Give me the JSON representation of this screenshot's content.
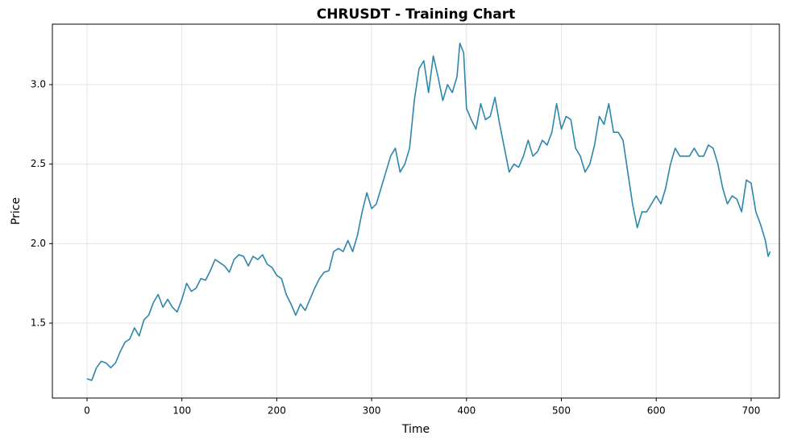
{
  "chart_data": {
    "type": "line",
    "title": "CHRUSDT - Training Chart",
    "x_label": "Time",
    "y_label": "Price",
    "x": [
      0,
      5,
      10,
      15,
      20,
      25,
      30,
      35,
      40,
      45,
      50,
      55,
      60,
      65,
      70,
      75,
      80,
      85,
      90,
      95,
      100,
      105,
      110,
      115,
      120,
      125,
      130,
      135,
      140,
      145,
      150,
      155,
      160,
      165,
      170,
      175,
      180,
      185,
      190,
      195,
      200,
      205,
      210,
      215,
      220,
      225,
      230,
      235,
      240,
      245,
      250,
      255,
      260,
      265,
      270,
      275,
      280,
      285,
      290,
      295,
      300,
      305,
      310,
      315,
      320,
      325,
      330,
      335,
      340,
      345,
      350,
      355,
      360,
      365,
      370,
      375,
      380,
      385,
      390,
      393,
      397,
      400,
      405,
      410,
      415,
      420,
      425,
      430,
      435,
      440,
      445,
      450,
      455,
      460,
      465,
      470,
      475,
      480,
      485,
      490,
      495,
      500,
      505,
      510,
      515,
      520,
      525,
      530,
      535,
      540,
      545,
      550,
      555,
      560,
      565,
      570,
      575,
      580,
      585,
      590,
      595,
      600,
      605,
      610,
      615,
      620,
      625,
      630,
      635,
      640,
      645,
      650,
      655,
      660,
      665,
      670,
      675,
      680,
      685,
      690,
      695,
      700,
      705,
      710,
      715,
      718,
      720
    ],
    "values": [
      1.15,
      1.14,
      1.22,
      1.26,
      1.25,
      1.22,
      1.25,
      1.32,
      1.38,
      1.4,
      1.47,
      1.42,
      1.52,
      1.55,
      1.63,
      1.68,
      1.6,
      1.65,
      1.6,
      1.57,
      1.65,
      1.75,
      1.7,
      1.72,
      1.78,
      1.77,
      1.83,
      1.9,
      1.88,
      1.86,
      1.82,
      1.9,
      1.93,
      1.92,
      1.86,
      1.92,
      1.9,
      1.93,
      1.87,
      1.85,
      1.8,
      1.78,
      1.68,
      1.62,
      1.55,
      1.62,
      1.58,
      1.65,
      1.72,
      1.78,
      1.82,
      1.83,
      1.95,
      1.97,
      1.95,
      2.02,
      1.95,
      2.05,
      2.2,
      2.32,
      2.22,
      2.25,
      2.35,
      2.45,
      2.55,
      2.6,
      2.45,
      2.5,
      2.6,
      2.9,
      3.1,
      3.15,
      2.95,
      3.18,
      3.05,
      2.9,
      3.0,
      2.95,
      3.05,
      3.26,
      3.2,
      2.85,
      2.78,
      2.72,
      2.88,
      2.78,
      2.8,
      2.92,
      2.75,
      2.6,
      2.45,
      2.5,
      2.48,
      2.55,
      2.65,
      2.55,
      2.58,
      2.65,
      2.62,
      2.7,
      2.88,
      2.72,
      2.8,
      2.78,
      2.6,
      2.55,
      2.45,
      2.5,
      2.62,
      2.8,
      2.75,
      2.88,
      2.7,
      2.7,
      2.65,
      2.45,
      2.25,
      2.1,
      2.2,
      2.2,
      2.25,
      2.3,
      2.25,
      2.35,
      2.5,
      2.6,
      2.55,
      2.55,
      2.55,
      2.6,
      2.55,
      2.55,
      2.62,
      2.6,
      2.5,
      2.35,
      2.25,
      2.3,
      2.28,
      2.2,
      2.4,
      2.38,
      2.2,
      2.12,
      2.02,
      1.92,
      1.95
    ],
    "color": "#2e86ab",
    "xlim": [
      -36.5,
      729.8
    ],
    "ylim": [
      1.029,
      3.38
    ],
    "xticks": [
      0,
      100,
      200,
      300,
      400,
      500,
      600,
      700
    ],
    "yticks": [
      1.5,
      {
        "value": 2,
        "label": "2.0"
      },
      2.5,
      {
        "value": 3,
        "label": "3.0"
      }
    ],
    "grid": true
  }
}
